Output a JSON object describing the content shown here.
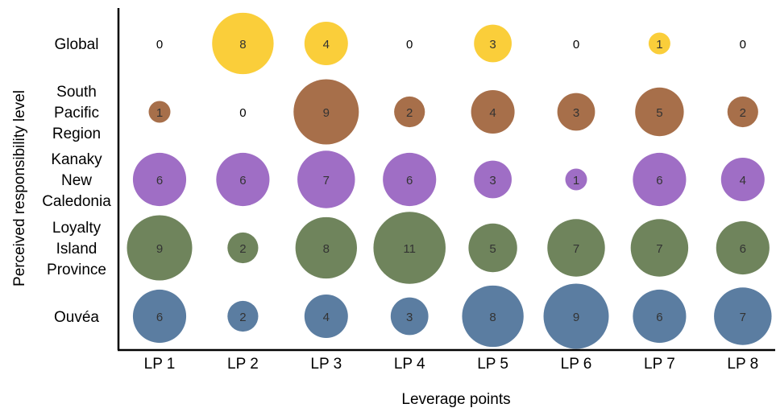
{
  "chart_data": {
    "type": "bubble",
    "title": "",
    "xlabel": "Leverage points",
    "ylabel": "Perceived responsibility level",
    "x_categories": [
      "LP 1",
      "LP 2",
      "LP 3",
      "LP 4",
      "LP 5",
      "LP 6",
      "LP 7",
      "LP 8"
    ],
    "series": [
      {
        "name": "Global",
        "label_lines": [
          "Global"
        ],
        "color": "#f9c618",
        "values": [
          0,
          8,
          4,
          0,
          3,
          0,
          1,
          0
        ]
      },
      {
        "name": "South Pacific Region",
        "label_lines": [
          "South",
          "Pacific",
          "Region"
        ],
        "color": "#98562a",
        "values": [
          1,
          0,
          9,
          2,
          4,
          3,
          5,
          2
        ]
      },
      {
        "name": "Kanaky New Caledonia",
        "label_lines": [
          "Kanaky",
          "New",
          "Caledonia"
        ],
        "color": "#8e55bb",
        "values": [
          6,
          6,
          7,
          6,
          3,
          1,
          6,
          4
        ]
      },
      {
        "name": "Loyalty Island Province",
        "label_lines": [
          "Loyalty",
          "Island",
          "Province"
        ],
        "color": "#566f3f",
        "values": [
          9,
          2,
          8,
          11,
          5,
          7,
          7,
          6
        ]
      },
      {
        "name": "Ouvéa",
        "label_lines": [
          "Ouvéa"
        ],
        "color": "#3e6690",
        "values": [
          6,
          2,
          4,
          3,
          8,
          9,
          6,
          7
        ]
      }
    ],
    "grid": false,
    "legend": "none"
  }
}
